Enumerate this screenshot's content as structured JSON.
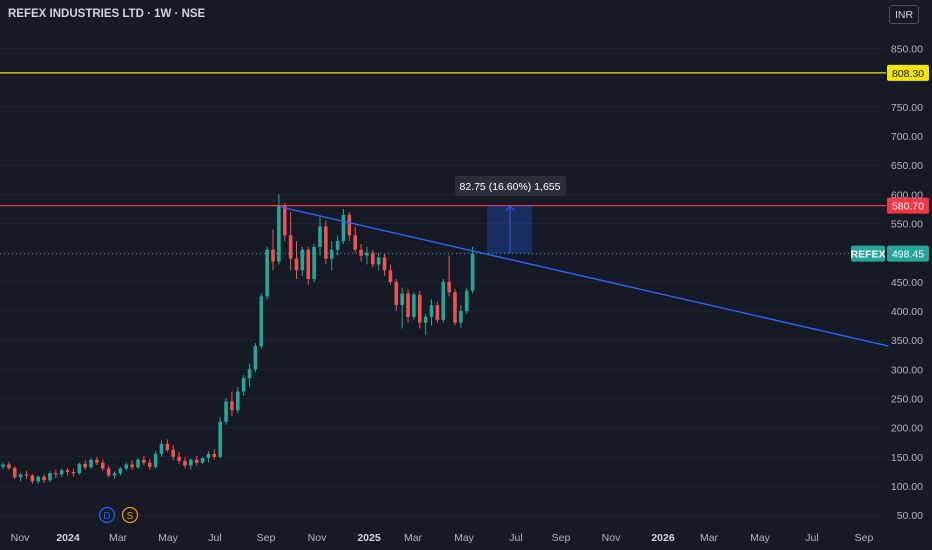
{
  "header": {
    "title": "REFEX INDUSTRIES LTD · 1W · NSE",
    "currency": "INR"
  },
  "colors": {
    "background": "#161a25",
    "up": "#26a69a",
    "down": "#ef5350",
    "resistance_upper": "#f2e600",
    "resistance_lower": "#f23645",
    "trendline": "#2962ff",
    "price_line": "#26a69a"
  },
  "chart_data": {
    "type": "candlestick",
    "timeframe": "1W",
    "y_ticks": [
      50,
      100,
      150,
      200,
      250,
      300,
      350,
      400,
      450,
      500,
      550,
      600,
      650,
      700,
      750,
      800,
      850
    ],
    "x_ticks": [
      "Nov",
      "2024",
      "Mar",
      "May",
      "Jul",
      "Sep",
      "Nov",
      "2025",
      "Mar",
      "May",
      "Jul",
      "Sep",
      "Nov",
      "2026",
      "Mar",
      "May",
      "Jul",
      "Sep"
    ],
    "x_tick_bold": [
      "2024",
      "2025",
      "2026"
    ],
    "horizontal_lines": [
      {
        "value": 808.3,
        "label": "808.30",
        "color": "#f2e600"
      },
      {
        "value": 580.7,
        "label": "580.70",
        "color": "#f23645"
      }
    ],
    "last_price": {
      "symbol": "REFEX",
      "value": 498.45,
      "label": "498.45"
    },
    "trendline": {
      "from": {
        "date": "2024-09-20",
        "price": 578
      },
      "to": {
        "date": "2026-10-01",
        "price": 340
      }
    },
    "measure": {
      "label": "82.75 (16.60%) 1,655",
      "from_price": 498.45,
      "to_price": 581.2
    },
    "event_markers": [
      "D",
      "S"
    ],
    "candles": [
      [
        133,
        140,
        129,
        137
      ],
      [
        137,
        142,
        128,
        131
      ],
      [
        131,
        134,
        112,
        115
      ],
      [
        115,
        122,
        108,
        120
      ],
      [
        120,
        126,
        112,
        118
      ],
      [
        118,
        121,
        104,
        108
      ],
      [
        108,
        118,
        104,
        116
      ],
      [
        116,
        120,
        105,
        110
      ],
      [
        110,
        126,
        107,
        122
      ],
      [
        122,
        128,
        114,
        120
      ],
      [
        120,
        130,
        116,
        127
      ],
      [
        127,
        131,
        118,
        124
      ],
      [
        124,
        130,
        116,
        122
      ],
      [
        122,
        140,
        120,
        138
      ],
      [
        138,
        144,
        128,
        132
      ],
      [
        132,
        148,
        130,
        145
      ],
      [
        145,
        150,
        136,
        140
      ],
      [
        140,
        146,
        126,
        130
      ],
      [
        130,
        135,
        115,
        118
      ],
      [
        118,
        125,
        112,
        122
      ],
      [
        122,
        133,
        118,
        130
      ],
      [
        130,
        140,
        126,
        137
      ],
      [
        137,
        144,
        128,
        132
      ],
      [
        132,
        148,
        130,
        145
      ],
      [
        145,
        152,
        135,
        140
      ],
      [
        140,
        146,
        128,
        133
      ],
      [
        133,
        160,
        130,
        155
      ],
      [
        155,
        178,
        150,
        172
      ],
      [
        172,
        180,
        158,
        162
      ],
      [
        162,
        170,
        144,
        150
      ],
      [
        150,
        158,
        138,
        143
      ],
      [
        143,
        150,
        130,
        135
      ],
      [
        135,
        148,
        128,
        145
      ],
      [
        145,
        152,
        134,
        140
      ],
      [
        140,
        150,
        138,
        148
      ],
      [
        148,
        160,
        140,
        155
      ],
      [
        155,
        163,
        145,
        150
      ],
      [
        150,
        218,
        148,
        210
      ],
      [
        210,
        250,
        205,
        245
      ],
      [
        245,
        262,
        220,
        230
      ],
      [
        230,
        270,
        225,
        262
      ],
      [
        262,
        290,
        255,
        285
      ],
      [
        285,
        310,
        270,
        300
      ],
      [
        300,
        345,
        295,
        340
      ],
      [
        340,
        430,
        335,
        425
      ],
      [
        425,
        510,
        420,
        505
      ],
      [
        505,
        540,
        470,
        485
      ],
      [
        485,
        600,
        480,
        580
      ],
      [
        580,
        585,
        520,
        530
      ],
      [
        530,
        570,
        470,
        490
      ],
      [
        490,
        520,
        455,
        470
      ],
      [
        470,
        510,
        460,
        505
      ],
      [
        505,
        510,
        445,
        455
      ],
      [
        455,
        515,
        450,
        510
      ],
      [
        510,
        560,
        495,
        545
      ],
      [
        545,
        555,
        480,
        490
      ],
      [
        490,
        520,
        470,
        505
      ],
      [
        505,
        530,
        495,
        520
      ],
      [
        520,
        575,
        515,
        565
      ],
      [
        565,
        570,
        520,
        530
      ],
      [
        530,
        545,
        500,
        505
      ],
      [
        505,
        515,
        485,
        495
      ],
      [
        495,
        510,
        480,
        500
      ],
      [
        500,
        505,
        475,
        480
      ],
      [
        480,
        500,
        470,
        492
      ],
      [
        492,
        498,
        460,
        470
      ],
      [
        470,
        480,
        445,
        450
      ],
      [
        450,
        455,
        400,
        410
      ],
      [
        410,
        440,
        370,
        430
      ],
      [
        430,
        438,
        380,
        390
      ],
      [
        390,
        432,
        385,
        428
      ],
      [
        428,
        435,
        370,
        380
      ],
      [
        380,
        395,
        360,
        390
      ],
      [
        390,
        420,
        375,
        410
      ],
      [
        410,
        416,
        380,
        385
      ],
      [
        385,
        455,
        380,
        450
      ],
      [
        450,
        495,
        425,
        432
      ],
      [
        432,
        438,
        375,
        380
      ],
      [
        380,
        410,
        372,
        400
      ],
      [
        400,
        440,
        395,
        435
      ],
      [
        435,
        510,
        430,
        498.45
      ]
    ]
  }
}
